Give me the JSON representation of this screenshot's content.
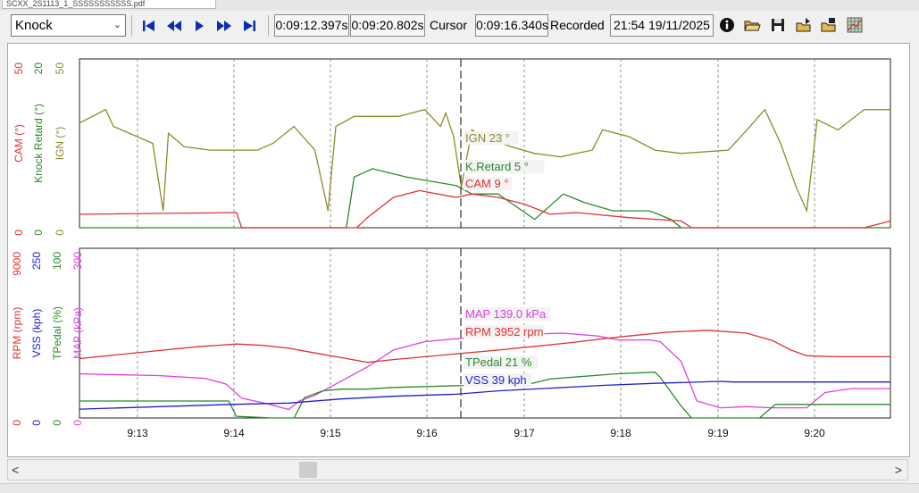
{
  "window": {
    "tab_title": "SCXX_2S1113_1_SSSSSSSSSSS.pdf"
  },
  "toolbar": {
    "channel_select": "Knock",
    "time_start": "0:09:12.397s",
    "time_end": "0:09:20.802s",
    "cursor_label": "Cursor",
    "cursor_time": "0:09:16.340s",
    "recorded_label": "Recorded",
    "recorded_value": "21:54 19/11/2025",
    "icons": [
      "skip-first-icon",
      "step-back-icon",
      "play-icon",
      "step-forward-icon",
      "skip-last-icon",
      "info-icon",
      "open-folder-icon",
      "save-icon",
      "export-icon",
      "import-icon",
      "grid-icon"
    ]
  },
  "colors": {
    "cam": "#e03131",
    "knock": "#2b8a2b",
    "ign": "#8c8c2a",
    "rpm": "#e03131",
    "vss": "#1f1fd0",
    "tpedal": "#2b8a2b",
    "map": "#e040e0",
    "grid": "#777777"
  },
  "chart_data": [
    {
      "type": "line",
      "name": "top-panel",
      "x_range": [
        "9:12.4",
        "9:20.8"
      ],
      "x_ticks": [
        "9:13",
        "9:14",
        "9:15",
        "9:16",
        "9:17",
        "9:18",
        "9:19",
        "9:20"
      ],
      "axes": [
        {
          "label": "CAM (°)",
          "min": "0",
          "max": "50",
          "color": "cam"
        },
        {
          "label": "Knock Retard (°)",
          "min": "0",
          "max": "20",
          "color": "knock"
        },
        {
          "label": "IGN (°)",
          "min": "0",
          "max": "50",
          "color": "ign"
        }
      ],
      "series": [
        {
          "name": "IGN",
          "cursor_label": "IGN 23 °",
          "color": "ign",
          "ranges": [
            0,
            50
          ],
          "points": [
            [
              0,
              31
            ],
            [
              1,
              35
            ],
            [
              1.3,
              30
            ],
            [
              2.8,
              25
            ],
            [
              3.2,
              5
            ],
            [
              3.4,
              28
            ],
            [
              4,
              24
            ],
            [
              5,
              23
            ],
            [
              6,
              23
            ],
            [
              6.8,
              23
            ],
            [
              7.4,
              25
            ],
            [
              8.2,
              30
            ],
            [
              9,
              23
            ],
            [
              9.5,
              5
            ],
            [
              9.8,
              30
            ],
            [
              10.5,
              33
            ],
            [
              12.2,
              33
            ],
            [
              13.2,
              35
            ],
            [
              13.8,
              30
            ],
            [
              14,
              34
            ],
            [
              14.3,
              27
            ],
            [
              14.6,
              12
            ],
            [
              15,
              29
            ],
            [
              15.4,
              27
            ],
            [
              16.5,
              24
            ],
            [
              17.4,
              22
            ],
            [
              18.4,
              21
            ],
            [
              19,
              22
            ],
            [
              19.6,
              23
            ],
            [
              20,
              29
            ],
            [
              21,
              27
            ],
            [
              22,
              23
            ],
            [
              23,
              22
            ],
            [
              24.8,
              23
            ],
            [
              25.4,
              28
            ],
            [
              26.2,
              35
            ],
            [
              26.8,
              25
            ],
            [
              27.4,
              12
            ],
            [
              27.8,
              5
            ],
            [
              28.2,
              32
            ],
            [
              29,
              29
            ],
            [
              30,
              35
            ],
            [
              31,
              35
            ]
          ]
        },
        {
          "name": "Knock Retard",
          "cursor_label": "K.Retard 5 °",
          "color": "knock",
          "ranges": [
            0,
            20
          ],
          "points": [
            [
              0,
              0
            ],
            [
              10.2,
              0
            ],
            [
              10.5,
              6
            ],
            [
              11.2,
              7
            ],
            [
              12.5,
              6
            ],
            [
              14.4,
              5
            ],
            [
              15,
              4
            ],
            [
              16,
              4
            ],
            [
              17.4,
              1
            ],
            [
              18.5,
              4
            ],
            [
              19.3,
              3
            ],
            [
              20.4,
              2
            ],
            [
              21.8,
              2
            ],
            [
              22.6,
              1
            ],
            [
              23,
              0
            ],
            [
              31,
              0
            ]
          ]
        },
        {
          "name": "CAM",
          "cursor_label": "CAM 9 °",
          "color": "cam",
          "ranges": [
            0,
            50
          ],
          "points": [
            [
              0,
              4
            ],
            [
              6,
              4.5
            ],
            [
              6.2,
              0
            ],
            [
              10.6,
              0
            ],
            [
              11,
              3
            ],
            [
              12,
              9
            ],
            [
              13,
              11
            ],
            [
              14.4,
              9
            ],
            [
              15,
              10
            ],
            [
              16,
              9
            ],
            [
              17,
              7
            ],
            [
              18,
              4
            ],
            [
              19,
              4.5
            ],
            [
              21,
              3
            ],
            [
              23,
              2
            ],
            [
              23.4,
              0
            ],
            [
              30,
              0
            ],
            [
              30.5,
              1
            ],
            [
              31,
              2
            ]
          ]
        }
      ]
    },
    {
      "type": "line",
      "name": "bottom-panel",
      "x_range": [
        "9:12.4",
        "9:20.8"
      ],
      "x_ticks": [
        "9:13",
        "9:14",
        "9:15",
        "9:16",
        "9:17",
        "9:18",
        "9:19",
        "9:20"
      ],
      "axes": [
        {
          "label": "RPM (rpm)",
          "min": "0",
          "max": "9000",
          "color": "rpm"
        },
        {
          "label": "VSS (kph)",
          "min": "0",
          "max": "250",
          "color": "vss"
        },
        {
          "label": "TPedal (%)",
          "min": "0",
          "max": "100",
          "color": "tpedal"
        },
        {
          "label": "MAP (kPa)",
          "min": "0",
          "max": "300",
          "color": "map"
        }
      ],
      "series": [
        {
          "name": "MAP",
          "cursor_label": "MAP 139.0 kPa",
          "color": "map",
          "ranges": [
            0,
            300
          ],
          "points": [
            [
              0,
              78
            ],
            [
              3,
              75
            ],
            [
              4.8,
              70
            ],
            [
              5.6,
              60
            ],
            [
              6.2,
              35
            ],
            [
              7.2,
              25
            ],
            [
              8,
              15
            ],
            [
              8.4,
              30
            ],
            [
              9,
              40
            ],
            [
              10,
              65
            ],
            [
              11,
              90
            ],
            [
              12,
              120
            ],
            [
              13.2,
              135
            ],
            [
              14.4,
              140
            ],
            [
              15.6,
              145
            ],
            [
              17,
              148
            ],
            [
              18.5,
              150
            ],
            [
              19.8,
              145
            ],
            [
              20.6,
              138
            ],
            [
              21.8,
              138
            ],
            [
              22.2,
              135
            ],
            [
              23,
              100
            ],
            [
              23.6,
              30
            ],
            [
              24.5,
              18
            ],
            [
              25.5,
              20
            ],
            [
              26.5,
              18
            ],
            [
              27.8,
              18
            ],
            [
              28.5,
              45
            ],
            [
              29.5,
              52
            ],
            [
              31,
              52
            ]
          ]
        },
        {
          "name": "RPM",
          "cursor_label": "RPM 3952 rpm",
          "color": "rpm",
          "ranges": [
            0,
            9000
          ],
          "points": [
            [
              0,
              3150
            ],
            [
              2.5,
              3500
            ],
            [
              4.5,
              3780
            ],
            [
              6,
              3920
            ],
            [
              7,
              3850
            ],
            [
              8,
              3700
            ],
            [
              9,
              3450
            ],
            [
              10,
              3200
            ],
            [
              11,
              2950
            ],
            [
              12,
              3100
            ],
            [
              14.4,
              3400
            ],
            [
              16,
              3600
            ],
            [
              17.4,
              3800
            ],
            [
              18.8,
              4000
            ],
            [
              20,
              4200
            ],
            [
              21,
              4350
            ],
            [
              22.5,
              4550
            ],
            [
              24,
              4650
            ],
            [
              25.5,
              4500
            ],
            [
              26.5,
              4100
            ],
            [
              27.2,
              3600
            ],
            [
              27.8,
              3300
            ],
            [
              29,
              3250
            ],
            [
              31,
              3250
            ]
          ]
        },
        {
          "name": "TPedal",
          "cursor_label": "TPedal 21 %",
          "color": "tpedal",
          "ranges": [
            0,
            100
          ],
          "points": [
            [
              0,
              10
            ],
            [
              5.7,
              10
            ],
            [
              6.0,
              1
            ],
            [
              7.4,
              0
            ],
            [
              8.2,
              0
            ],
            [
              8.6,
              12
            ],
            [
              9.3,
              16
            ],
            [
              10,
              17
            ],
            [
              11,
              17
            ],
            [
              12,
              18
            ],
            [
              14.4,
              19
            ],
            [
              17.2,
              20
            ],
            [
              18,
              23
            ],
            [
              20.5,
              26
            ],
            [
              22,
              27
            ],
            [
              22.2,
              24
            ],
            [
              23,
              7
            ],
            [
              23.4,
              0
            ],
            [
              25,
              0
            ],
            [
              26,
              0
            ],
            [
              26.6,
              8
            ],
            [
              31,
              8
            ]
          ]
        },
        {
          "name": "VSS",
          "cursor_label": "VSS 39 kph",
          "color": "vss",
          "ranges": [
            0,
            250
          ],
          "points": [
            [
              0,
              13
            ],
            [
              5.8,
              20
            ],
            [
              8,
              22
            ],
            [
              10,
              28
            ],
            [
              12,
              32
            ],
            [
              14.4,
              35
            ],
            [
              16,
              40
            ],
            [
              18,
              44
            ],
            [
              20,
              48
            ],
            [
              22,
              51
            ],
            [
              24.5,
              54
            ],
            [
              25,
              53
            ],
            [
              27,
              53
            ],
            [
              31,
              53
            ]
          ]
        }
      ]
    }
  ]
}
